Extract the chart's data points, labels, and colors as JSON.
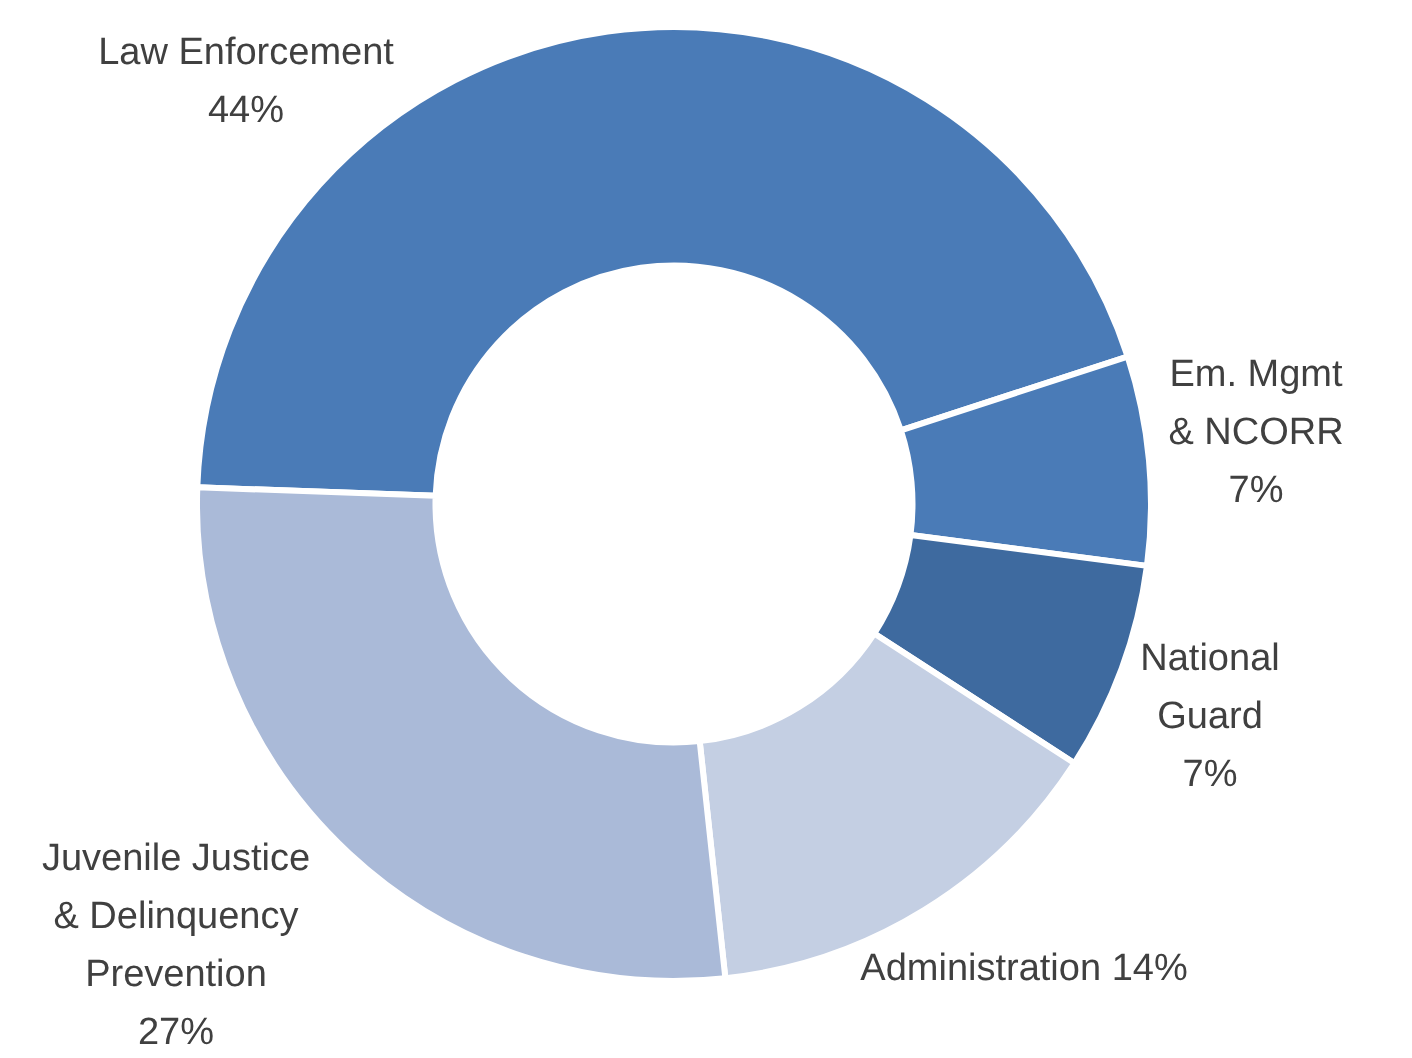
{
  "chart_data": {
    "type": "donut",
    "categories": [
      "Law Enforcement",
      "Em. Mgmt & NCORR",
      "National Guard",
      "Administration",
      "Juvenile Justice & Delinquency Prevention"
    ],
    "values": [
      44,
      7,
      7,
      14,
      27
    ],
    "colors": [
      "#4a7bb7",
      "#4a7bb7",
      "#3e6a9f",
      "#c4cfe3",
      "#aabad8"
    ],
    "value_labels": [
      "44%",
      "7%",
      "7%",
      "14%",
      "27%"
    ],
    "legend": false
  }
}
